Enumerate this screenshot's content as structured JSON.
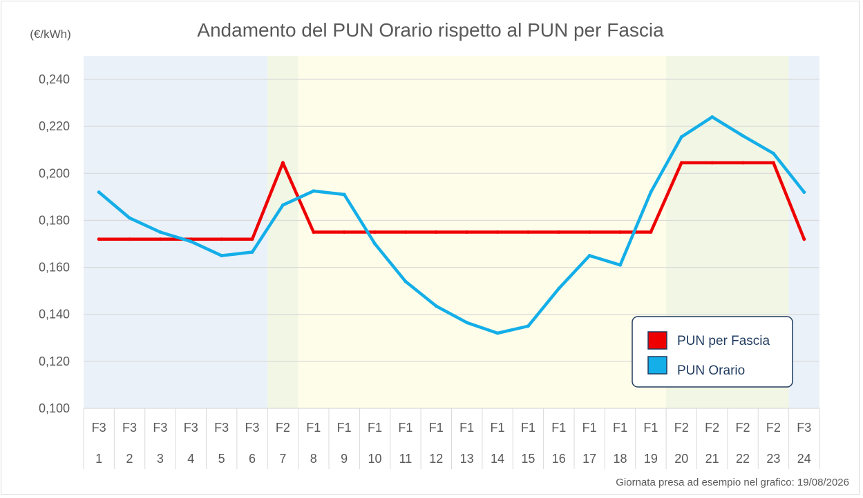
{
  "chart_data": {
    "type": "line",
    "title": "Andamento del PUN Orario rispetto al PUN per Fascia",
    "unit_label": "(€/kWh)",
    "ylim": [
      0.1,
      0.25
    ],
    "y_ticks": [
      "0,100",
      "0,120",
      "0,140",
      "0,160",
      "0,180",
      "0,200",
      "0,220",
      "0,240"
    ],
    "y_tick_values": [
      0.1,
      0.12,
      0.14,
      0.16,
      0.18,
      0.2,
      0.22,
      0.24
    ],
    "grid": true,
    "categories": [
      "1",
      "2",
      "3",
      "4",
      "5",
      "6",
      "7",
      "8",
      "9",
      "10",
      "11",
      "12",
      "13",
      "14",
      "15",
      "16",
      "17",
      "18",
      "19",
      "20",
      "21",
      "22",
      "23",
      "24"
    ],
    "bands": [
      "F3",
      "F3",
      "F3",
      "F3",
      "F3",
      "F3",
      "F2",
      "F1",
      "F1",
      "F1",
      "F1",
      "F1",
      "F1",
      "F1",
      "F1",
      "F1",
      "F1",
      "F1",
      "F1",
      "F2",
      "F2",
      "F2",
      "F2",
      "F3"
    ],
    "band_colors": {
      "F1": "#fefde9",
      "F2": "#f2f6e4",
      "F3": "#eaf1f9"
    },
    "series": [
      {
        "name": "PUN per Fascia",
        "color": "#ee0000",
        "values": [
          0.172,
          0.172,
          0.172,
          0.172,
          0.172,
          0.172,
          0.2045,
          0.175,
          0.175,
          0.175,
          0.175,
          0.175,
          0.175,
          0.175,
          0.175,
          0.175,
          0.175,
          0.175,
          0.175,
          0.2045,
          0.2045,
          0.2045,
          0.2045,
          0.172
        ]
      },
      {
        "name": "PUN Orario",
        "color": "#14aee8",
        "values": [
          0.192,
          0.181,
          0.175,
          0.171,
          0.165,
          0.1665,
          0.1865,
          0.1925,
          0.191,
          0.17,
          0.154,
          0.1435,
          0.1365,
          0.132,
          0.135,
          0.151,
          0.165,
          0.161,
          0.192,
          0.2155,
          0.224,
          0.216,
          0.2085,
          0.192
        ]
      }
    ],
    "legend_position": "bottom-right",
    "footnote": "Giornata presa ad esempio nel grafico: 19/08/2026"
  }
}
